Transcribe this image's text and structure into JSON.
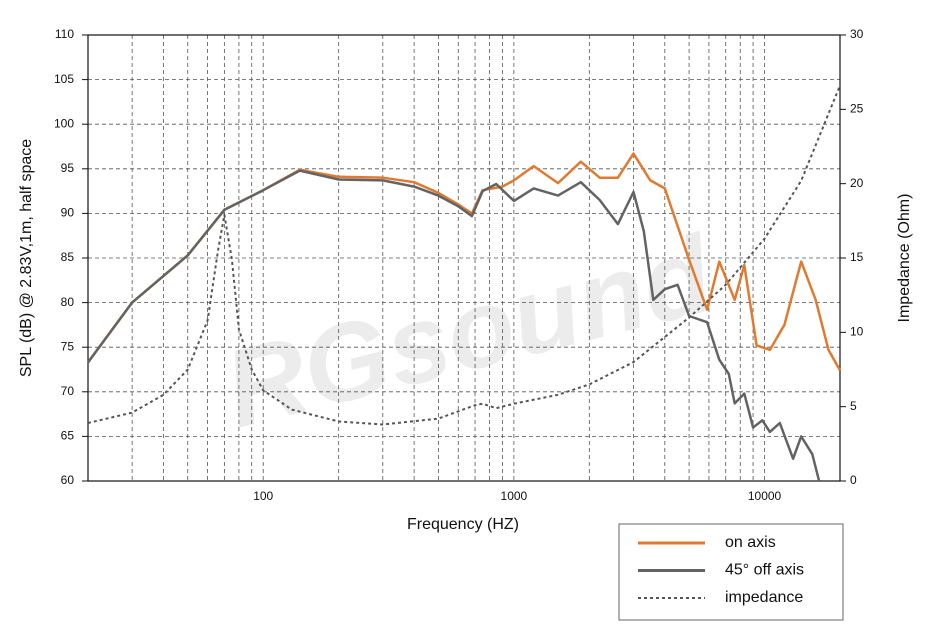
{
  "chart_data": {
    "type": "line",
    "x_label": "Frequency (HZ)",
    "y_label": "SPL (dB) @ 2.83V,1m, half space",
    "y2_label": "Impedance (Ohm)",
    "watermark": "RGsound",
    "xscale": "log",
    "xlim": [
      20,
      20000
    ],
    "xticks": [
      100,
      1000,
      10000
    ],
    "xgrid_minor": [
      20,
      30,
      40,
      50,
      60,
      70,
      80,
      90,
      200,
      300,
      400,
      500,
      600,
      700,
      800,
      900,
      2000,
      3000,
      4000,
      5000,
      6000,
      7000,
      8000,
      9000,
      20000
    ],
    "ylim": [
      60,
      110
    ],
    "yticks": [
      60,
      65,
      70,
      75,
      80,
      85,
      90,
      95,
      100,
      105,
      110
    ],
    "y2lim": [
      0,
      30
    ],
    "y2ticks": [
      0,
      5,
      10,
      15,
      20,
      25,
      30
    ],
    "grid": true,
    "legend": "bottom-right",
    "series": [
      {
        "name": "on axis",
        "color": "#e07a30",
        "style": "solid",
        "x": [
          20,
          30,
          50,
          70,
          100,
          140,
          200,
          300,
          400,
          500,
          600,
          680,
          750,
          900,
          1000,
          1200,
          1500,
          1850,
          2200,
          2600,
          3000,
          3500,
          4000,
          5000,
          5900,
          6600,
          7600,
          8300,
          9300,
          10500,
          12000,
          14000,
          16000,
          18000,
          20000
        ],
        "values": [
          73.3,
          80,
          85.3,
          90.4,
          92.6,
          94.9,
          94.1,
          94,
          93.5,
          92.3,
          91,
          90,
          92.6,
          93,
          93.7,
          95.3,
          93.4,
          95.8,
          94,
          94,
          96.7,
          93.7,
          92.8,
          84.8,
          79.2,
          84.6,
          80.3,
          84.2,
          75.2,
          74.7,
          77.5,
          84.6,
          80.3,
          74.7,
          72.4
        ]
      },
      {
        "name": "45° off axis",
        "color": "#636363",
        "style": "solid",
        "x": [
          20,
          30,
          50,
          70,
          100,
          140,
          200,
          300,
          400,
          500,
          600,
          680,
          750,
          850,
          1000,
          1200,
          1500,
          1850,
          2200,
          2600,
          3000,
          3300,
          3600,
          4000,
          4500,
          5000,
          5900,
          6600,
          7200,
          7600,
          8300,
          9000,
          9800,
          10500,
          11500,
          13000,
          14000,
          15500,
          16500
        ],
        "values": [
          73.3,
          80,
          85.3,
          90.4,
          92.6,
          94.8,
          93.8,
          93.7,
          93,
          92,
          90.8,
          89.7,
          92.5,
          93.3,
          91.4,
          92.8,
          92,
          93.5,
          91.5,
          88.8,
          92.4,
          88,
          80.3,
          81.5,
          82,
          78.5,
          77.8,
          73.6,
          72,
          68.7,
          69.8,
          66,
          66.8,
          65.5,
          66.5,
          62.5,
          65,
          63,
          60
        ]
      },
      {
        "name": "impedance",
        "color": "#555555",
        "style": "dotted",
        "axis": "y2",
        "x": [
          20,
          30,
          40,
          50,
          60,
          66,
          70,
          75,
          80,
          90,
          100,
          130,
          200,
          300,
          500,
          700,
          750,
          850,
          1000,
          1500,
          2000,
          3000,
          5000,
          7000,
          10000,
          14000,
          20000
        ],
        "values": [
          3.9,
          4.6,
          5.8,
          7.5,
          10.8,
          15.5,
          17.9,
          14.9,
          10.2,
          7.5,
          6.1,
          4.8,
          4,
          3.8,
          4.2,
          5.1,
          5.2,
          4.9,
          5.2,
          5.8,
          6.5,
          8,
          11,
          13.2,
          16.3,
          20.2,
          26.6
        ]
      }
    ]
  }
}
